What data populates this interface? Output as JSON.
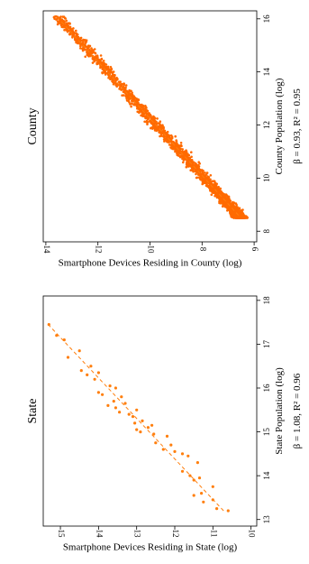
{
  "chart_data": [
    {
      "type": "scatter",
      "title": "State",
      "xlabel": "State Population (log)",
      "ylabel": "Smartphone Devices Residing in State (log)",
      "annotation": "β = 1.08,  R² = 0.96",
      "xlim": [
        12.85,
        18.1
      ],
      "ylim": [
        9.85,
        15.45
      ],
      "xticks": [
        13,
        14,
        15,
        16,
        17,
        18
      ],
      "yticks": [
        10,
        11,
        12,
        13,
        14,
        15
      ],
      "point_color": "#ff7f0e",
      "fit_line": {
        "x": [
          13.2,
          17.45
        ],
        "y": [
          10.72,
          15.32
        ]
      },
      "points": [
        [
          13.2,
          10.6
        ],
        [
          13.25,
          10.9
        ],
        [
          13.45,
          11.0
        ],
        [
          13.4,
          11.25
        ],
        [
          13.55,
          11.5
        ],
        [
          13.6,
          11.3
        ],
        [
          13.75,
          11.0
        ],
        [
          13.9,
          11.5
        ],
        [
          13.95,
          11.35
        ],
        [
          14.1,
          11.8
        ],
        [
          14.0,
          11.6
        ],
        [
          14.3,
          11.4
        ],
        [
          14.45,
          11.65
        ],
        [
          14.5,
          11.8
        ],
        [
          14.55,
          12.0
        ],
        [
          14.6,
          12.3
        ],
        [
          14.7,
          12.1
        ],
        [
          14.75,
          12.5
        ],
        [
          14.9,
          12.2
        ],
        [
          14.95,
          12.55
        ],
        [
          15.0,
          12.9
        ],
        [
          15.05,
          13.0
        ],
        [
          15.1,
          12.7
        ],
        [
          15.15,
          12.6
        ],
        [
          15.2,
          13.05
        ],
        [
          15.25,
          12.85
        ],
        [
          15.35,
          13.1
        ],
        [
          15.4,
          13.2
        ],
        [
          15.45,
          13.45
        ],
        [
          15.5,
          13.0
        ],
        [
          15.55,
          13.55
        ],
        [
          15.6,
          13.75
        ],
        [
          15.65,
          13.3
        ],
        [
          15.7,
          13.6
        ],
        [
          15.8,
          13.4
        ],
        [
          15.85,
          13.9
        ],
        [
          15.9,
          14.0
        ],
        [
          16.0,
          13.55
        ],
        [
          16.05,
          13.7
        ],
        [
          16.2,
          14.1
        ],
        [
          16.3,
          14.3
        ],
        [
          16.35,
          14.0
        ],
        [
          16.4,
          14.45
        ],
        [
          16.5,
          14.2
        ],
        [
          16.7,
          14.8
        ],
        [
          16.85,
          14.5
        ],
        [
          17.1,
          14.9
        ],
        [
          17.2,
          15.1
        ],
        [
          17.45,
          15.3
        ]
      ]
    },
    {
      "type": "scatter",
      "title": "County",
      "xlabel": "County Population (log)",
      "ylabel": "Smartphone Devices Residing in County (log)",
      "annotation": "β = 0.93,  R² = 0.95",
      "xlim": [
        7.6,
        16.3
      ],
      "ylim": [
        5.9,
        14.1
      ],
      "xticks": [
        8,
        10,
        12,
        14,
        16
      ],
      "yticks": [
        6,
        8,
        10,
        12,
        14
      ],
      "point_color": "#ff6a00",
      "fit_line": {
        "x": [
          8.6,
          16.1
        ],
        "y": [
          6.6,
          13.6
        ]
      },
      "point_cloud": {
        "count": 2200,
        "x_range": [
          8.5,
          16.1
        ],
        "slope": 0.93,
        "intercept": -1.4,
        "spread": 0.32
      }
    }
  ]
}
